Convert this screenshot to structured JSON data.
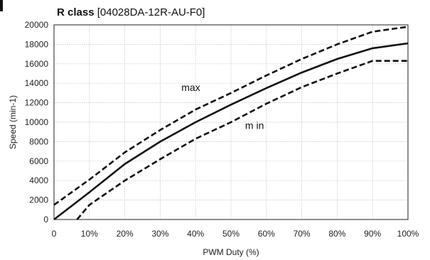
{
  "chart_data": {
    "type": "line",
    "title_bold": "R class",
    "title_rest": " [04028DA-12R-AU-F0]",
    "xlabel": "PWM Duty (%)",
    "ylabel": "Speed (min-1)",
    "xlim": [
      0,
      100
    ],
    "ylim": [
      0,
      20000
    ],
    "x_ticks": [
      0,
      10,
      20,
      30,
      40,
      50,
      60,
      70,
      80,
      90,
      100
    ],
    "x_tick_labels": [
      "0",
      "10%",
      "20%",
      "30%",
      "40%",
      "50%",
      "60%",
      "70%",
      "80%",
      "90%",
      "100%"
    ],
    "y_ticks": [
      0,
      2000,
      4000,
      6000,
      8000,
      10000,
      12000,
      14000,
      16000,
      18000,
      20000
    ],
    "y_tick_labels": [
      "0",
      "2000",
      "4000",
      "6000",
      "8000",
      "10000",
      "12000",
      "14000",
      "16000",
      "18000",
      "20000"
    ],
    "grid": true,
    "series": [
      {
        "line_style": "solid",
        "color": "#111111",
        "x": [
          0,
          10,
          20,
          30,
          40,
          50,
          60,
          70,
          80,
          90,
          100
        ],
        "y": [
          0,
          2800,
          5700,
          8000,
          10000,
          11800,
          13500,
          15100,
          16500,
          17600,
          18100
        ]
      },
      {
        "line_style": "dashed",
        "color": "#111111",
        "x": [
          0,
          10,
          20,
          30,
          40,
          50,
          60,
          70,
          80,
          90,
          100
        ],
        "y": [
          1500,
          4100,
          6900,
          9200,
          11300,
          13000,
          14800,
          16500,
          18000,
          19300,
          19800
        ]
      },
      {
        "line_style": "dashed",
        "color": "#111111",
        "x": [
          6.5,
          10,
          20,
          30,
          40,
          50,
          60,
          70,
          80,
          90,
          100
        ],
        "y": [
          0,
          1500,
          4000,
          6200,
          8300,
          10000,
          11900,
          13600,
          15000,
          16300,
          16300
        ]
      }
    ],
    "annotations": [
      {
        "text": "max",
        "x": 36,
        "y": 13200
      },
      {
        "text": "m in",
        "x": 54,
        "y": 9300
      }
    ]
  }
}
